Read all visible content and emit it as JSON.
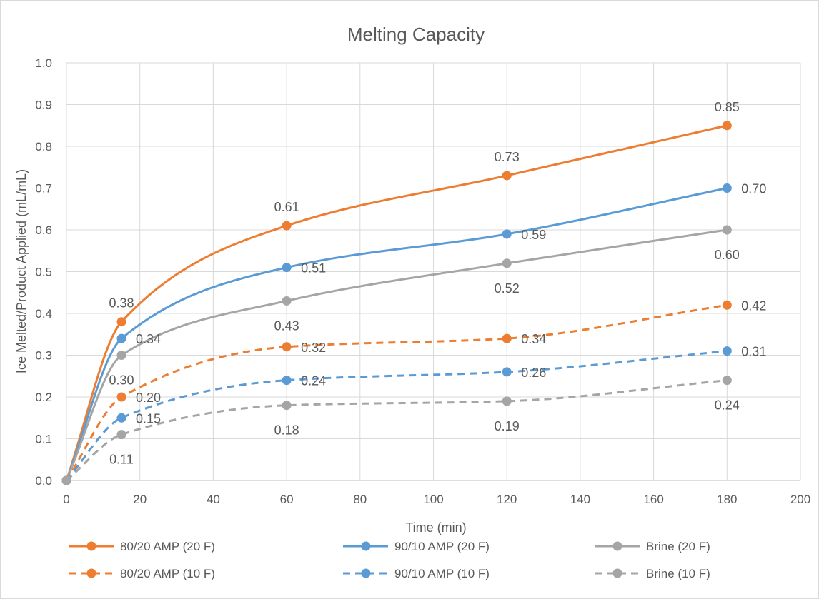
{
  "chart_data": {
    "type": "line",
    "title": "Melting Capacity",
    "xlabel": "Time (min)",
    "ylabel": "Ice Melted/Product Applied (mL/mL)",
    "xlim": [
      0,
      200
    ],
    "ylim": [
      0,
      1.0
    ],
    "xticks": [
      0,
      20,
      40,
      60,
      80,
      100,
      120,
      140,
      160,
      180,
      200
    ],
    "yticks": [
      0.0,
      0.1,
      0.2,
      0.3,
      0.4,
      0.5,
      0.6,
      0.7,
      0.8,
      0.9,
      1.0
    ],
    "x_tick_labels": [
      "0",
      "20",
      "40",
      "60",
      "80",
      "100",
      "120",
      "140",
      "160",
      "180",
      "200"
    ],
    "y_tick_labels": [
      "0.0",
      "0.1",
      "0.2",
      "0.3",
      "0.4",
      "0.5",
      "0.6",
      "0.7",
      "0.8",
      "0.9",
      "1.0"
    ],
    "grid": true,
    "legend_position": "bottom",
    "x": [
      0,
      15,
      60,
      120,
      180
    ],
    "series": [
      {
        "name": "80/20 AMP (20 F)",
        "color": "#ED7D31",
        "dash": "solid",
        "values": [
          0,
          0.38,
          0.61,
          0.73,
          0.85
        ],
        "labels": [
          "",
          "0.38",
          "0.61",
          "0.73",
          "0.85"
        ],
        "label_pos": [
          "",
          "above",
          "above",
          "above",
          "above"
        ]
      },
      {
        "name": "90/10 AMP (20 F)",
        "color": "#5B9BD5",
        "dash": "solid",
        "values": [
          0,
          0.34,
          0.51,
          0.59,
          0.7
        ],
        "labels": [
          "",
          "0.34",
          "0.51",
          "0.59",
          "0.70"
        ],
        "label_pos": [
          "",
          "right",
          "right",
          "right",
          "right"
        ]
      },
      {
        "name": "Brine (20 F)",
        "color": "#A5A5A5",
        "dash": "solid",
        "values": [
          0,
          0.3,
          0.43,
          0.52,
          0.6
        ],
        "labels": [
          "",
          "0.30",
          "0.43",
          "0.52",
          "0.60"
        ],
        "label_pos": [
          "",
          "below",
          "below",
          "below",
          "below"
        ]
      },
      {
        "name": "80/20 AMP (10 F)",
        "color": "#ED7D31",
        "dash": "dashed",
        "values": [
          0,
          0.2,
          0.32,
          0.34,
          0.42
        ],
        "labels": [
          "",
          "0.20",
          "0.32",
          "0.34",
          "0.42"
        ],
        "label_pos": [
          "",
          "right",
          "right",
          "right",
          "right"
        ]
      },
      {
        "name": "90/10 AMP (10 F)",
        "color": "#5B9BD5",
        "dash": "dashed",
        "values": [
          0,
          0.15,
          0.24,
          0.26,
          0.31
        ],
        "labels": [
          "",
          "0.15",
          "0.24",
          "0.26",
          "0.31"
        ],
        "label_pos": [
          "",
          "right",
          "right",
          "right",
          "right"
        ]
      },
      {
        "name": "Brine (10 F)",
        "color": "#A5A5A5",
        "dash": "dashed",
        "values": [
          0,
          0.11,
          0.18,
          0.19,
          0.24
        ],
        "labels": [
          "",
          "0.11",
          "0.18",
          "0.19",
          "0.24"
        ],
        "label_pos": [
          "",
          "below",
          "below",
          "below",
          "below"
        ]
      }
    ]
  }
}
